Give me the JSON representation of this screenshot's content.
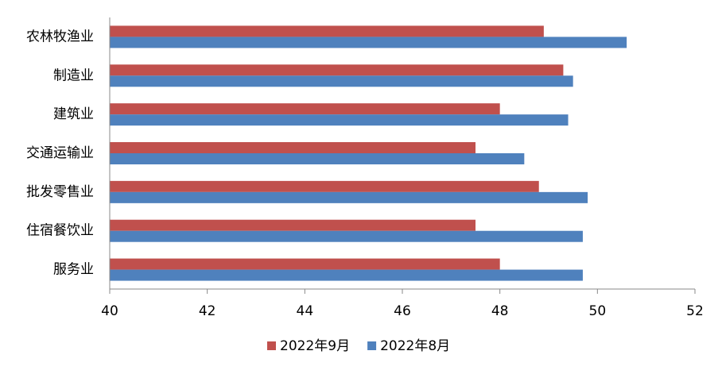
{
  "chart_data": {
    "type": "hbar",
    "categories": [
      "农林牧渔业",
      "制造业",
      "建筑业",
      "交通运输业",
      "批发零售业",
      "住宿餐饮业",
      "服务业"
    ],
    "series": [
      {
        "name": "2022年9月",
        "color": "#c0504d",
        "values": [
          48.9,
          49.3,
          48.0,
          47.5,
          48.8,
          47.5,
          48.0
        ]
      },
      {
        "name": "2022年8月",
        "color": "#4f81bd",
        "values": [
          50.6,
          49.5,
          49.4,
          48.5,
          49.8,
          49.7,
          49.7
        ]
      }
    ],
    "xlim": [
      40,
      52
    ],
    "xticks": [
      40,
      42,
      44,
      46,
      48,
      50,
      52
    ],
    "legend": "bottom"
  }
}
